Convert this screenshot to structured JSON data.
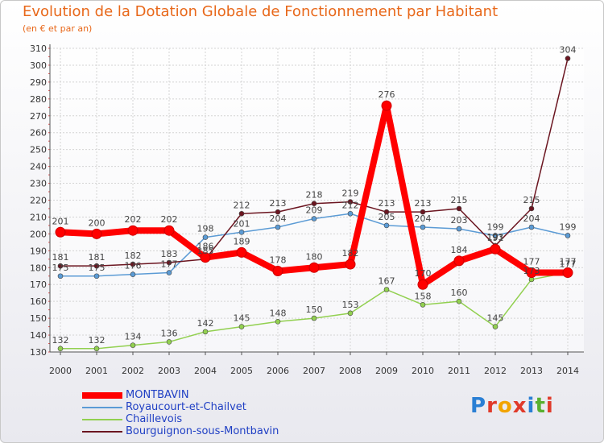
{
  "header": {
    "title": "Evolution de la Dotation Globale de Fonctionnement par Habitant",
    "subtitle": "(en € et par an)"
  },
  "logo": {
    "text": "Proxiti",
    "letters": [
      "P",
      "r",
      "o",
      "x",
      "i",
      "t",
      "i"
    ],
    "letter_colors": [
      "#2a7fd4",
      "#e03a2a",
      "#f2a400",
      "#e03a2a",
      "#2a7fd4",
      "#59b030",
      "#e03a2a"
    ]
  },
  "chart_data": {
    "type": "line",
    "title": "Evolution de la Dotation Globale de Fonctionnement par Habitant",
    "subtitle": "(en € et par an)",
    "x": [
      2000,
      2001,
      2002,
      2003,
      2004,
      2005,
      2006,
      2007,
      2008,
      2009,
      2010,
      2011,
      2012,
      2013,
      2014
    ],
    "ylim": [
      130,
      310
    ],
    "yticks": [
      130,
      140,
      150,
      160,
      170,
      180,
      190,
      200,
      210,
      220,
      230,
      240,
      250,
      260,
      270,
      280,
      290,
      300,
      310
    ],
    "grid": true,
    "legend_position": "bottom-left",
    "series": [
      {
        "name": "MONTBAVIN",
        "color": "#ff0000",
        "values": [
          201,
          200,
          202,
          202,
          186,
          189,
          178,
          180,
          182,
          276,
          170,
          184,
          191,
          177,
          177
        ]
      },
      {
        "name": "Royaucourt-et-Chailvet",
        "color": "#5b9bd5",
        "values": [
          175,
          175,
          176,
          177,
          198,
          201,
          204,
          209,
          212,
          205,
          204,
          203,
          199,
          204,
          199
        ]
      },
      {
        "name": "Chaillevois",
        "color": "#92d050",
        "values": [
          132,
          132,
          134,
          136,
          142,
          145,
          148,
          150,
          153,
          167,
          158,
          160,
          145,
          173,
          177
        ]
      },
      {
        "name": "Bourguignon-sous-Montbavin",
        "color": "#6b1520",
        "values": [
          181,
          181,
          182,
          183,
          185,
          212,
          213,
          218,
          219,
          213,
          213,
          215,
          193,
          215,
          304
        ]
      }
    ]
  }
}
